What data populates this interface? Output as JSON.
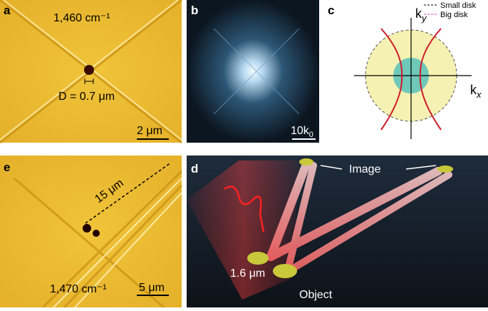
{
  "panels": {
    "a": {
      "label": "a",
      "wavenumber": "1,460 cm⁻¹",
      "diameter": "D = 0.7 μm",
      "scale": "2 μm"
    },
    "b": {
      "label": "b",
      "scale": {
        "base": "10k",
        "sub": "0"
      }
    },
    "c": {
      "label": "c",
      "ky": {
        "base": "k",
        "sub": "y"
      },
      "kx": {
        "base": "k",
        "sub": "x"
      },
      "legend": [
        "Small disk",
        "Big disk"
      ]
    },
    "e": {
      "label": "e",
      "distance": "15 μm",
      "wavenumber": "1,470 cm⁻¹",
      "scale": "5 μm"
    },
    "d": {
      "label": "d",
      "image": "Image",
      "separation": "1.6 μm",
      "object": "Object"
    }
  }
}
